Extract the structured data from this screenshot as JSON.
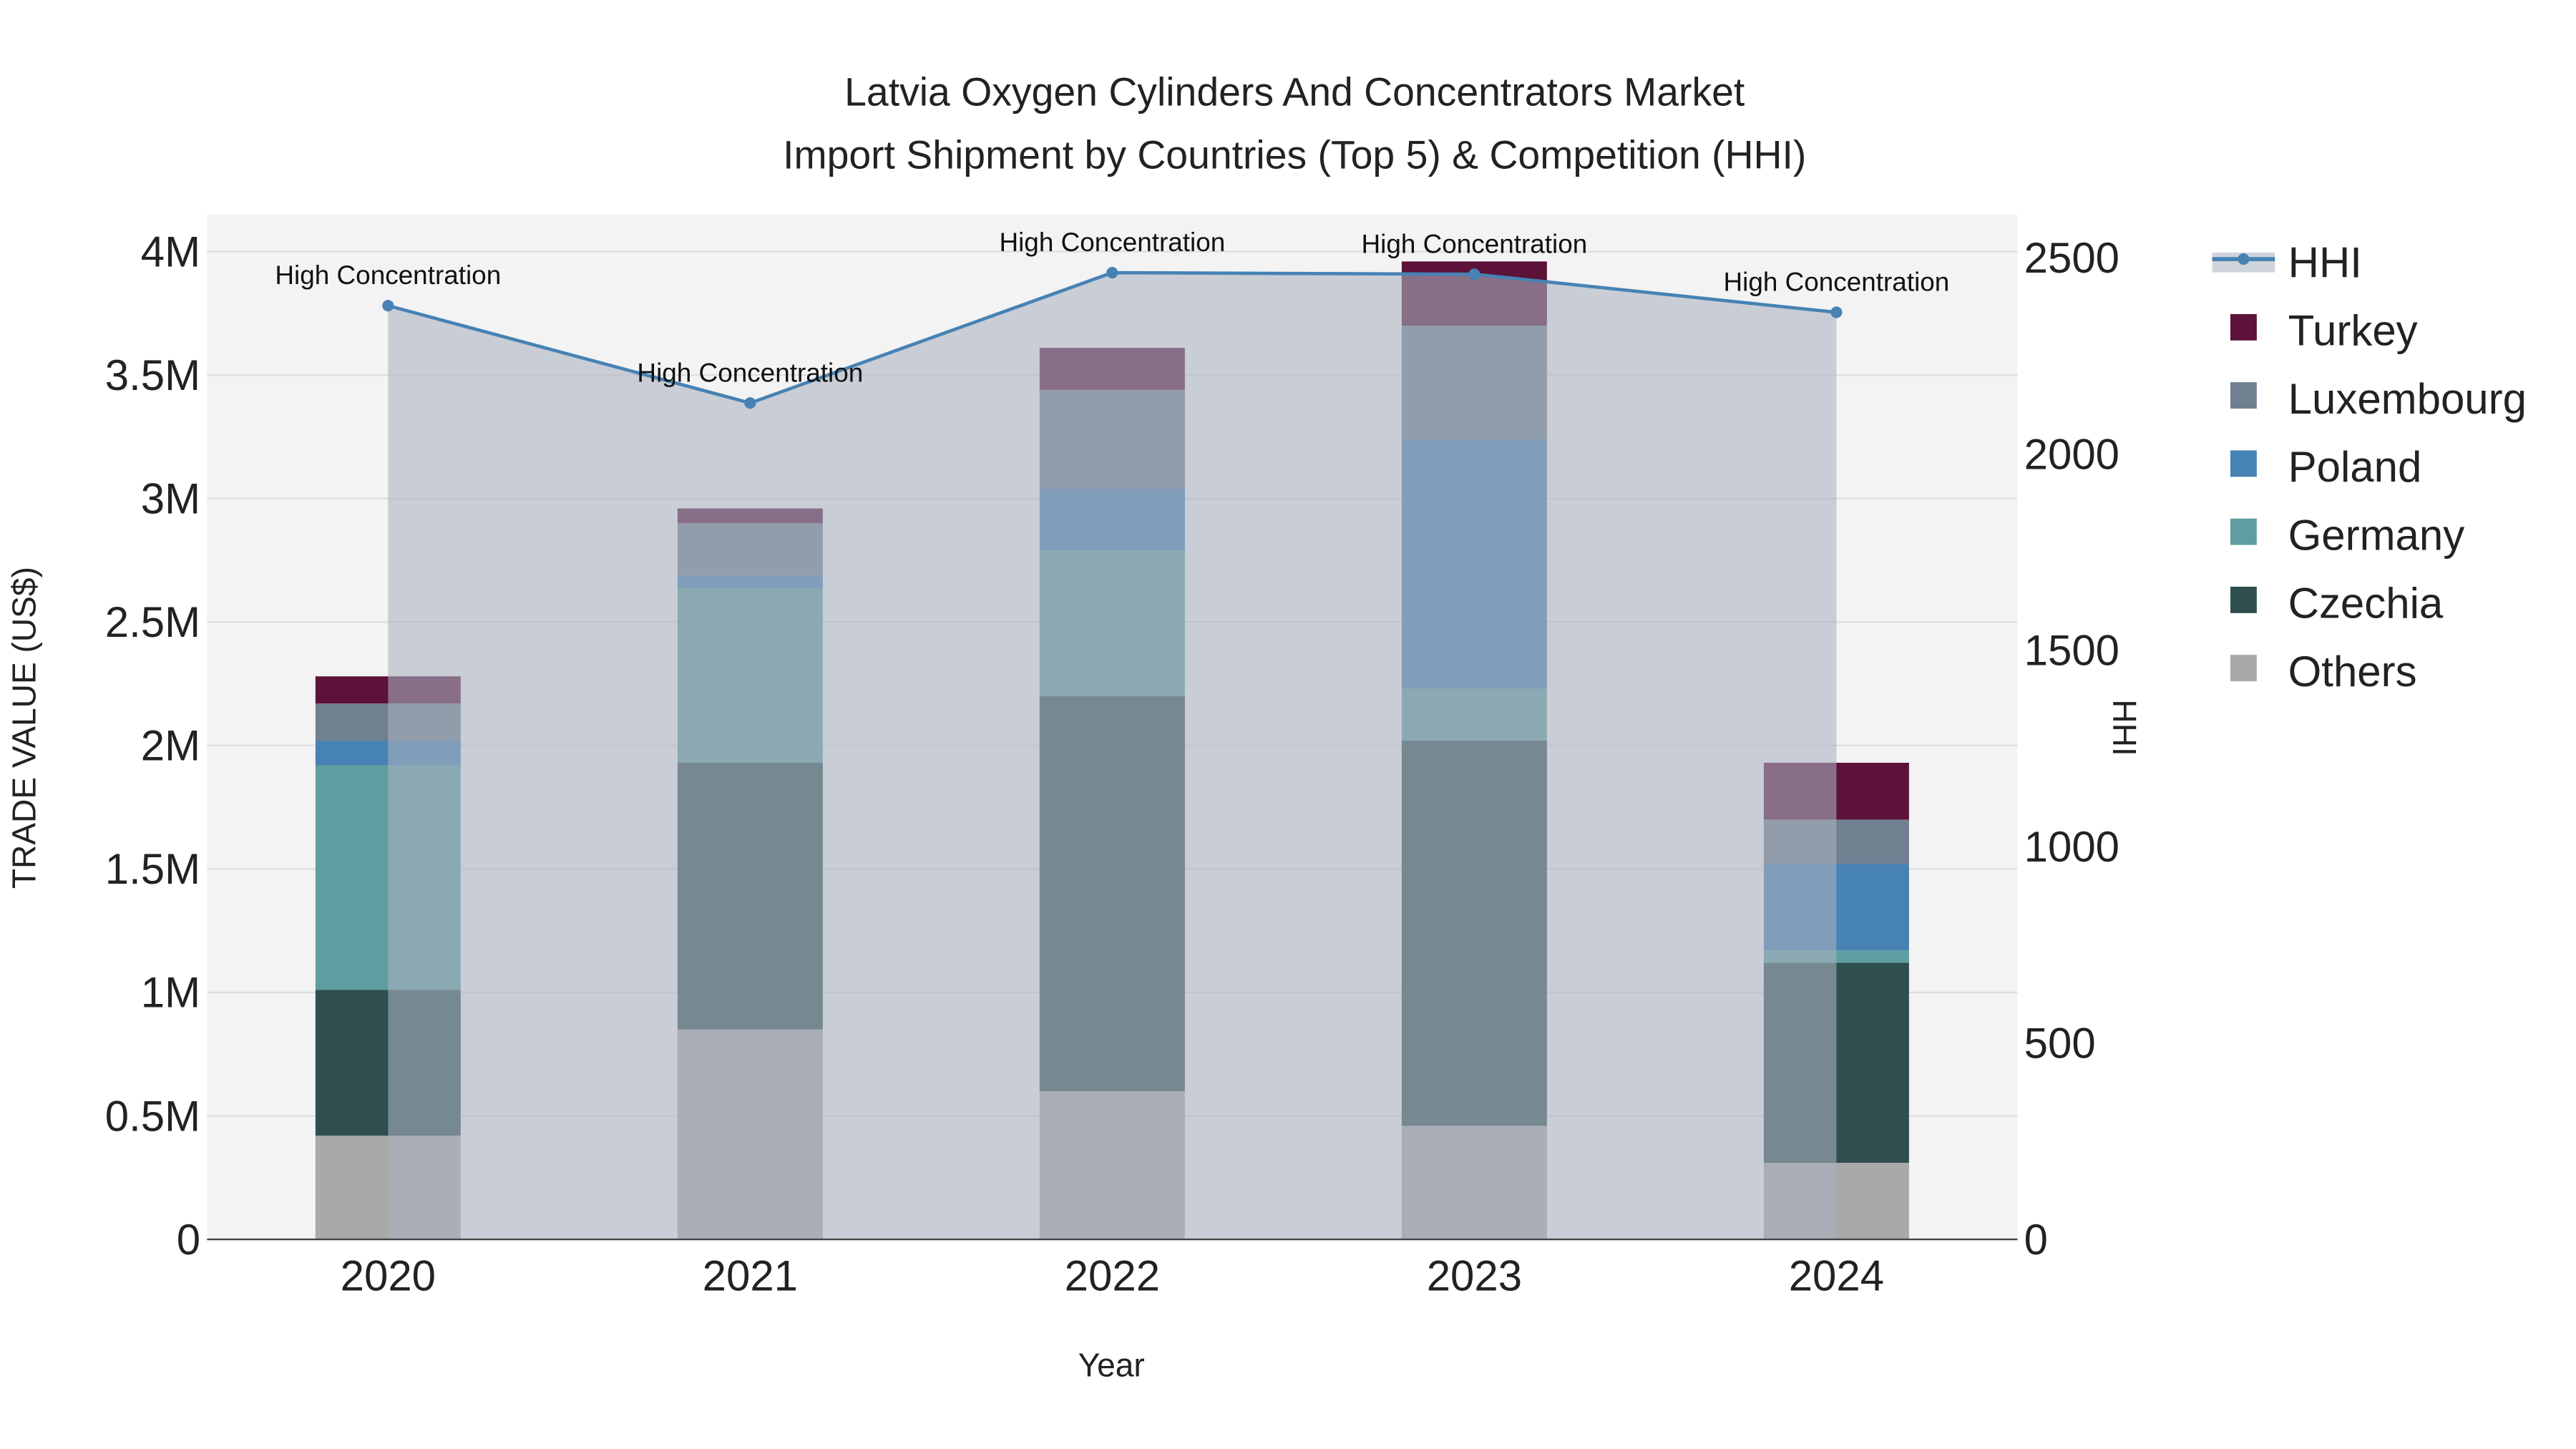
{
  "chart_data": {
    "type": "bar",
    "title_line1": "Latvia Oxygen Cylinders And Concentrators Market",
    "title_line2": "Import Shipment by Countries (Top 5) & Competition (HHI)",
    "xlabel": "Year",
    "ylabel": "TRADE VALUE (US$)",
    "y2label": "HHI",
    "categories": [
      "2020",
      "2021",
      "2022",
      "2023",
      "2024"
    ],
    "ylim": [
      0,
      4150000
    ],
    "y2lim": [
      0,
      2610
    ],
    "yticks": [
      0,
      500000,
      1000000,
      1500000,
      2000000,
      2500000,
      3000000,
      3500000,
      4000000
    ],
    "ytick_labels": [
      "0",
      "0.5M",
      "1M",
      "1.5M",
      "2M",
      "2.5M",
      "3M",
      "3.5M",
      "4M"
    ],
    "y2ticks": [
      0,
      500,
      1000,
      1500,
      2000,
      2500
    ],
    "y2tick_labels": [
      "0",
      "500",
      "1000",
      "1500",
      "2000",
      "2500"
    ],
    "series": [
      {
        "name": "Others",
        "color": "#a9a9a9",
        "values": [
          420000,
          850000,
          600000,
          460000,
          310000
        ]
      },
      {
        "name": "Czechia",
        "color": "#2f4f4f",
        "values": [
          590000,
          1080000,
          1600000,
          1560000,
          810000
        ]
      },
      {
        "name": "Germany",
        "color": "#5f9ea0",
        "values": [
          910000,
          710000,
          590000,
          210000,
          50000
        ]
      },
      {
        "name": "Poland",
        "color": "#4682b4",
        "values": [
          100000,
          50000,
          250000,
          1010000,
          350000
        ]
      },
      {
        "name": "Luxembourg",
        "color": "#708090",
        "values": [
          150000,
          210000,
          400000,
          460000,
          180000
        ]
      },
      {
        "name": "Turkey",
        "color": "#5c1239",
        "values": [
          110000,
          60000,
          170000,
          260000,
          230000
        ]
      }
    ],
    "hhi": {
      "name": "HHI",
      "color": "#4682b4",
      "values": [
        2378,
        2130,
        2462,
        2458,
        2361
      ],
      "annotations": [
        "High Concentration",
        "High Concentration",
        "High Concentration",
        "High Concentration",
        "High Concentration"
      ]
    },
    "legend_order": [
      "HHI",
      "Turkey",
      "Luxembourg",
      "Poland",
      "Germany",
      "Czechia",
      "Others"
    ],
    "legend_placement": "right",
    "grid": true
  }
}
